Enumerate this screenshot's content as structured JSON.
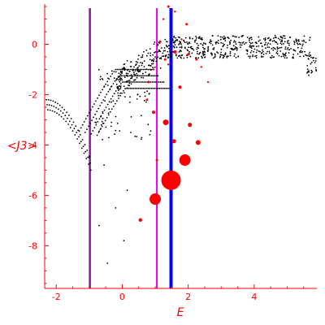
{
  "chart_data": {
    "type": "scatter",
    "xlabel": "E",
    "ylabel": "<J3>",
    "xlim": [
      -2.35,
      5.9
    ],
    "ylim": [
      -9.7,
      1.6
    ],
    "x_ticks": [
      -2,
      0,
      2,
      4
    ],
    "x_tick_labels": [
      "-2",
      "0",
      "2",
      "4"
    ],
    "y_ticks": [
      0,
      -2,
      -4,
      -6,
      -8
    ],
    "y_tick_labels": [
      "0",
      "-2",
      "-4",
      "-6",
      "-8"
    ],
    "grid": false,
    "colors": {
      "axis": "#ff0000",
      "small_points": "#000000",
      "weighted_points": "#ff0000",
      "line_purple": "#8b1a9a",
      "line_magenta": "#ee00ee",
      "line_blue": "#0000ff"
    },
    "vertical_lines": [
      {
        "x": -0.98,
        "color": "#8b1a9a"
      },
      {
        "x": 1.05,
        "color": "#ee00ee"
      },
      {
        "x": 1.48,
        "color": "#0000ff"
      }
    ],
    "weighted_points": [
      {
        "x": 1.48,
        "y": -5.4,
        "size": 12
      },
      {
        "x": 1.0,
        "y": -6.15,
        "size": 7
      },
      {
        "x": 1.9,
        "y": -4.6,
        "size": 7
      },
      {
        "x": 1.32,
        "y": -3.1,
        "size": 3.5
      },
      {
        "x": 2.3,
        "y": -3.9,
        "size": 3
      },
      {
        "x": 2.05,
        "y": -3.2,
        "size": 2.5
      },
      {
        "x": 1.57,
        "y": -3.85,
        "size": 2.5
      },
      {
        "x": 0.55,
        "y": -6.98,
        "size": 2.2
      },
      {
        "x": 0.95,
        "y": -2.7,
        "size": 2
      },
      {
        "x": 1.75,
        "y": -1.7,
        "size": 2
      },
      {
        "x": 0.75,
        "y": -2.2,
        "size": 1.5
      },
      {
        "x": 1.6,
        "y": -0.3,
        "size": 2
      },
      {
        "x": 2.0,
        "y": -0.4,
        "size": 1.5
      },
      {
        "x": 2.25,
        "y": -0.6,
        "size": 1.5
      },
      {
        "x": 1.3,
        "y": -0.6,
        "size": 1.5
      },
      {
        "x": 1.15,
        "y": 0.1,
        "size": 1.5
      },
      {
        "x": 0.8,
        "y": -1.5,
        "size": 1.5
      },
      {
        "x": 1.4,
        "y": 1.5,
        "size": 1.5
      },
      {
        "x": 1.95,
        "y": 0.8,
        "size": 1.5
      },
      {
        "x": 2.6,
        "y": -1.5,
        "size": 1.2
      },
      {
        "x": 1.05,
        "y": -4.6,
        "size": 1.5
      },
      {
        "x": 1.25,
        "y": 1.0,
        "size": 1.2
      },
      {
        "x": 1.6,
        "y": 1.3,
        "size": 1.2
      },
      {
        "x": 2.4,
        "y": -0.9,
        "size": 1.2
      },
      {
        "x": 0.95,
        "y": -1.0,
        "size": 1.2
      },
      {
        "x": 1.4,
        "y": -0.8,
        "size": 1.2
      },
      {
        "x": 1.8,
        "y": 0.2,
        "size": 1.2
      }
    ],
    "small_points_summary": {
      "color": "#000000",
      "tail_isolated": [
        {
          "x": -0.7,
          "y": -7.2
        },
        {
          "x": 0.05,
          "y": -7.8
        },
        {
          "x": -0.45,
          "y": -8.7
        },
        {
          "x": -0.2,
          "y": -6.5
        },
        {
          "x": -1.0,
          "y": -4.5
        },
        {
          "x": -0.55,
          "y": -4.8
        },
        {
          "x": 0.15,
          "y": -5.8
        }
      ]
    }
  }
}
